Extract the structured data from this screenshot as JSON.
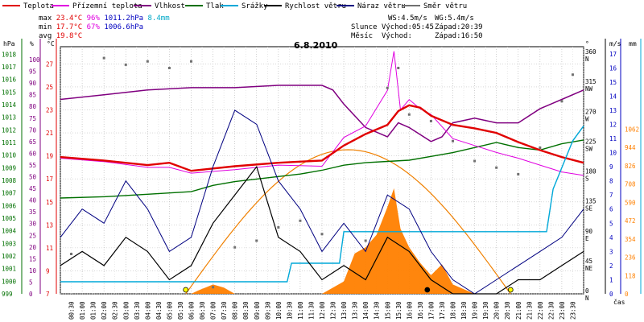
{
  "legend": [
    {
      "label": "Teplota",
      "color": "#e00000",
      "left": 3
    },
    {
      "label": "Přízemní teplota",
      "color": "#e000e0",
      "left": 64
    },
    {
      "label": "Vlhkost",
      "color": "#800080",
      "left": 166
    },
    {
      "label": "Tlak",
      "color": "#007000",
      "left": 230
    },
    {
      "label": "Srážky",
      "color": "#00a8d8",
      "left": 274
    },
    {
      "label": "Rychlost větru",
      "color": "#000000",
      "left": 328
    },
    {
      "label": "Náraz větru",
      "color": "#000080",
      "left": 418
    },
    {
      "label": "Směr větru",
      "color": "#707070",
      "left": 500
    }
  ],
  "stats": {
    "max_label": "max",
    "max_temp": "23.4°C",
    "max_hum": "96%",
    "max_press": "1011.2hPa",
    "max_rain": "8.4mm",
    "min_label": "min",
    "min_temp": "17.7°C",
    "min_hum": "67%",
    "min_press": "1006.6hPa",
    "avg_label": "avg",
    "avg_temp": "19.8°C"
  },
  "astro": {
    "ws": "WS:4.5m/s",
    "wg": "WG:5.4m/s",
    "sun_label": "Slunce",
    "sunrise": "Východ:05:45",
    "sunset": "Západ:20:39",
    "moon_label": "Měsíc",
    "moonrise": "Východ:",
    "moonset": "Západ:16:50"
  },
  "units": {
    "hpa": "hPa",
    "pct": "%",
    "degc": "°C",
    "deg": "°",
    "ms": "m/s",
    "mm": "mm",
    "wm2": "W/m²",
    "cas": "čas"
  },
  "colors": {
    "temp": "#e00000",
    "ground": "#e000e0",
    "hum": "#800080",
    "press": "#007000",
    "rain": "#00a8d8",
    "wind": "#000000",
    "gust": "#000080",
    "dir": "#707070",
    "solar": "#ff8000",
    "sun_curve": "#f08000"
  },
  "chart_data": {
    "type": "line",
    "title": "6.8.2010",
    "xlabel": "čas",
    "x_ticks": [
      "00:30",
      "01:00",
      "01:30",
      "02:00",
      "02:30",
      "03:00",
      "03:30",
      "04:00",
      "04:30",
      "05:00",
      "05:30",
      "06:00",
      "06:30",
      "07:00",
      "07:30",
      "08:00",
      "08:30",
      "09:00",
      "09:30",
      "10:00",
      "10:30",
      "11:00",
      "11:30",
      "12:00",
      "12:30",
      "13:00",
      "13:30",
      "14:00",
      "14:30",
      "15:00",
      "15:30",
      "16:00",
      "16:30",
      "17:00",
      "17:30",
      "18:00",
      "18:30",
      "19:00",
      "19:30",
      "20:00",
      "20:30",
      "21:00",
      "21:30",
      "22:00",
      "22:30",
      "23:00",
      "23:30"
    ],
    "axes": {
      "pressure_hpa": [
        999,
        1000,
        1001,
        1002,
        1003,
        1004,
        1005,
        1006,
        1007,
        1008,
        1009,
        1010,
        1011,
        1012,
        1013,
        1014,
        1015,
        1016,
        1017,
        1018
      ],
      "humidity_pct": [
        0,
        5,
        10,
        15,
        20,
        25,
        30,
        35,
        40,
        45,
        50,
        55,
        60,
        65,
        70,
        75,
        80,
        85,
        90,
        95,
        100
      ],
      "temp_c": [
        7,
        9,
        11,
        13,
        15,
        17,
        19,
        21,
        23,
        25,
        27
      ],
      "wind_dir_deg": [
        0,
        45,
        90,
        135,
        180,
        225,
        270,
        315,
        360
      ],
      "wind_dir_labels": [
        "N",
        "NE",
        "E",
        "SE",
        "S",
        "SW",
        "W",
        "NW",
        "N"
      ],
      "wind_ms": [
        0,
        1,
        2,
        3,
        4,
        5,
        6,
        7,
        8,
        9,
        10,
        11,
        12,
        13,
        14,
        15,
        16,
        17
      ],
      "rain_mm": [
        0,
        1,
        2,
        3,
        4,
        5,
        6,
        7,
        8,
        9
      ],
      "solar_wm2": [
        0,
        118,
        236,
        354,
        472,
        590,
        708,
        826,
        944,
        1062
      ]
    },
    "series": [
      {
        "name": "Teplota",
        "unit": "°C",
        "x": [
          0,
          2,
          4,
          5,
          6,
          8,
          10,
          12,
          13,
          14,
          15,
          15.5,
          16,
          16.5,
          17,
          18,
          19,
          20,
          21,
          22,
          23,
          24
        ],
        "values": [
          18.9,
          18.6,
          18.2,
          18.4,
          17.7,
          18.1,
          18.4,
          18.6,
          19.9,
          20.9,
          21.7,
          22.9,
          23.4,
          23.2,
          22.5,
          21.7,
          21.4,
          21.0,
          20.2,
          19.5,
          18.9,
          18.4
        ]
      },
      {
        "name": "Přízemní teplota",
        "unit": "°C",
        "x": [
          0,
          2,
          4,
          5,
          6,
          8,
          10,
          12,
          13,
          14,
          15,
          15.3,
          15.6,
          16,
          16.5,
          17,
          18,
          19,
          20,
          21,
          22,
          23,
          24
        ],
        "values": [
          18.8,
          18.5,
          18.0,
          18.0,
          17.5,
          17.8,
          18.2,
          18.1,
          20.6,
          21.6,
          24.7,
          28.1,
          23.0,
          23.9,
          23.1,
          22.6,
          20.5,
          19.9,
          19.3,
          18.8,
          18.2,
          17.6,
          17.3
        ]
      },
      {
        "name": "Vlhkost",
        "unit": "%",
        "x": [
          0,
          2,
          4,
          6,
          8,
          10,
          12,
          12.5,
          13,
          14,
          15,
          15.5,
          16,
          17,
          17.5,
          18,
          19,
          20,
          21,
          22,
          23,
          24
        ],
        "values": [
          83,
          85,
          87,
          88,
          88,
          89,
          89,
          87,
          81,
          71,
          67,
          73,
          71,
          65,
          67,
          73,
          75,
          73,
          73,
          79,
          83,
          87
        ]
      },
      {
        "name": "Tlak",
        "unit": "hPa",
        "x": [
          0,
          2,
          4,
          6,
          7,
          8,
          10,
          11,
          12,
          13,
          14,
          15,
          16,
          17,
          18,
          19,
          20,
          21,
          22,
          23,
          24
        ],
        "values": [
          1006.6,
          1006.7,
          1006.9,
          1007.1,
          1007.6,
          1007.9,
          1008.3,
          1008.5,
          1008.8,
          1009.2,
          1009.4,
          1009.5,
          1009.6,
          1009.9,
          1010.2,
          1010.6,
          1011.0,
          1010.6,
          1010.4,
          1010.9,
          1011.2
        ]
      },
      {
        "name": "Srážky",
        "unit": "mm",
        "x": [
          0,
          10.4,
          10.6,
          12.8,
          13.0,
          22.3,
          22.6,
          23.5,
          24
        ],
        "values": [
          0,
          0,
          1.0,
          1.0,
          2.7,
          2.7,
          5.0,
          7.6,
          8.4
        ]
      },
      {
        "name": "Rychlost větru",
        "unit": "m/s",
        "x": [
          0,
          1,
          2,
          3,
          4,
          5,
          6,
          7,
          8,
          9,
          10,
          11,
          12,
          13,
          14,
          15,
          16,
          17,
          18,
          19,
          20,
          21,
          22,
          23,
          24
        ],
        "values": [
          2,
          3,
          2,
          4,
          3,
          1,
          2,
          5,
          7,
          9,
          4,
          3,
          1,
          2,
          1,
          4,
          3,
          1,
          0,
          0,
          0,
          1,
          1,
          2,
          3
        ]
      },
      {
        "name": "Náraz větru",
        "unit": "m/s",
        "x": [
          0,
          1,
          2,
          3,
          4,
          5,
          6,
          7,
          8,
          9,
          10,
          11,
          12,
          13,
          14,
          15,
          16,
          17,
          18,
          19,
          20,
          21,
          22,
          23,
          24
        ],
        "values": [
          4,
          6,
          5,
          8,
          6,
          3,
          4,
          9,
          13,
          12,
          8,
          6,
          3,
          5,
          3,
          7,
          6,
          3,
          1,
          0,
          1,
          2,
          3,
          4,
          6
        ]
      },
      {
        "name": "Směr větru",
        "unit": "°",
        "x": [
          0.5,
          2,
          3,
          4,
          5,
          6,
          7,
          8,
          9,
          10,
          11,
          12,
          14,
          15,
          15.5,
          16,
          17,
          18,
          19,
          20,
          21,
          22,
          23,
          23.5
        ],
        "values": [
          60,
          355,
          345,
          350,
          340,
          350,
          10,
          70,
          80,
          100,
          110,
          90,
          80,
          310,
          340,
          270,
          260,
          230,
          200,
          190,
          180,
          220,
          290,
          330
        ]
      }
    ],
    "solar_radiation": {
      "unit": "W/m²",
      "x": [
        0,
        6,
        6.3,
        7,
        7.5,
        8,
        12,
        13,
        13.5,
        14,
        14.5,
        15,
        15.3,
        15.6,
        16,
        16.5,
        17,
        17.5,
        18,
        19,
        24
      ],
      "values": [
        0,
        0,
        20,
        60,
        40,
        0,
        0,
        80,
        260,
        300,
        380,
        560,
        680,
        420,
        300,
        200,
        120,
        190,
        60,
        0,
        0
      ]
    },
    "sun_position": {
      "x": [
        5.75,
        8,
        10,
        12,
        14,
        16,
        18,
        20.65
      ],
      "values": [
        0,
        400,
        720,
        880,
        900,
        760,
        420,
        0
      ]
    }
  }
}
